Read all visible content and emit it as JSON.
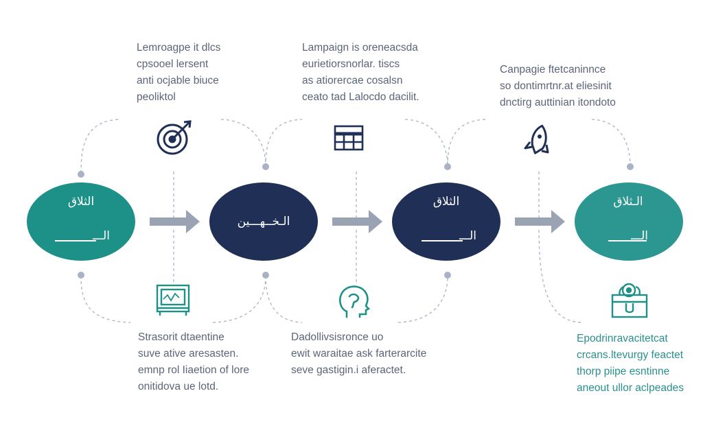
{
  "theme": {
    "teal": "#1d9087",
    "teal_light": "#2c9690",
    "navy": "#1f2f55",
    "arrow": "#9aa3b3",
    "dashed": "#a9b2c6",
    "text": "#5b6478",
    "text_teal": "#2a8f8c"
  },
  "nodes": [
    {
      "label": "الثلاق",
      "sub": "الـــ",
      "color": "teal"
    },
    {
      "label": "الـخــهـــين",
      "sub": "",
      "color": "navy"
    },
    {
      "label": "الثلاق",
      "sub": "الـــ",
      "color": "navy"
    },
    {
      "label": "الـثلاق",
      "sub": "الـــ",
      "color": "teal"
    }
  ],
  "top_texts": [
    {
      "lines": [
        "Lemroagpe it dlcs",
        "cpsooel lersent",
        "anti ocjable biuce",
        "peoliktol"
      ]
    },
    {
      "lines": [
        "Lampaign is oreneacsda",
        "eurietiorsnorlar. tiscs",
        "as atiorercae cosalsn",
        "ceato tad Lalocdo dacilit."
      ]
    },
    {
      "lines": [
        "Canpagie ftetcaninnce",
        "so dontimrtnr.at eliesinit",
        "dnctirg auttinian itondoto"
      ]
    }
  ],
  "bottom_texts": [
    {
      "lines": [
        "Strasorit dtaentine",
        "suve ative aresasten.",
        "emnp rol Iiaetion of lore",
        "onitidova ue lotd."
      ],
      "teal": false
    },
    {
      "lines": [
        "Dadollivsisronce uo",
        "ewit waraitae ask farterarcite",
        "seve gastigin.i aferactet."
      ],
      "teal": false
    },
    {
      "lines": [
        "Epodrinravacitetcat",
        "crcans.ltevurgy feactet",
        "thorp piipe esntinne",
        "aneout ullor aclpeades"
      ],
      "teal": true
    }
  ],
  "icons": {
    "top": [
      "target-icon",
      "calendar-grid-icon",
      "rocket-icon"
    ],
    "bottom": [
      "monitor-cabinet-icon",
      "head-profile-icon",
      "briefcase-gear-icon"
    ]
  }
}
